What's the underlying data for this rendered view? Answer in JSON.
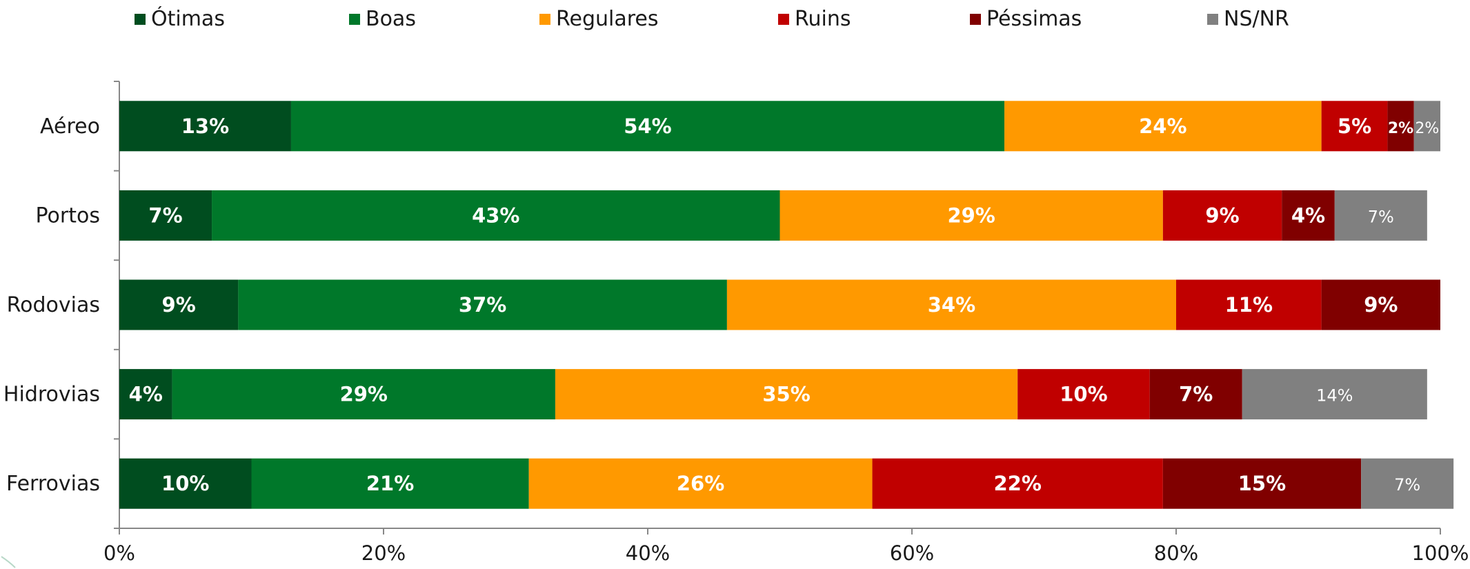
{
  "chart_data": {
    "type": "bar",
    "orientation": "horizontal",
    "stacked": true,
    "categories": [
      "Aéreo",
      "Portos",
      "Rodovias",
      "Hidrovias",
      "Ferrovias"
    ],
    "series": [
      {
        "name": "Ótimas",
        "color": "#004d1f",
        "values": [
          13,
          7,
          9,
          4,
          10
        ],
        "labels": [
          "13%",
          "7%",
          "9%",
          "4%",
          "10%"
        ]
      },
      {
        "name": "Boas",
        "color": "#00782a",
        "values": [
          54,
          43,
          37,
          29,
          21
        ],
        "labels": [
          "54%",
          "43%",
          "37%",
          "29%",
          "21%"
        ]
      },
      {
        "name": "Regulares",
        "color": "#ff9900",
        "values": [
          24,
          29,
          34,
          35,
          26
        ],
        "labels": [
          "24%",
          "29%",
          "34%",
          "35%",
          "26%"
        ]
      },
      {
        "name": "Ruins",
        "color": "#c00000",
        "values": [
          5,
          9,
          11,
          10,
          22
        ],
        "labels": [
          "5%",
          "9%",
          "11%",
          "10%",
          "22%"
        ]
      },
      {
        "name": "Péssimas",
        "color": "#800000",
        "values": [
          2,
          4,
          9,
          7,
          15
        ],
        "labels": [
          "2%",
          "4%",
          "9%",
          "7%",
          "15%"
        ]
      },
      {
        "name": "NS/NR",
        "color": "#808080",
        "values": [
          2,
          7,
          0,
          14,
          7
        ],
        "labels": [
          "2%",
          "7%",
          "",
          "14%",
          "7%"
        ]
      }
    ],
    "xlim": [
      0,
      100
    ],
    "x_ticks": [
      "0%",
      "20%",
      "40%",
      "60%",
      "80%",
      "100%"
    ],
    "legend_position": "top",
    "grid": false
  }
}
